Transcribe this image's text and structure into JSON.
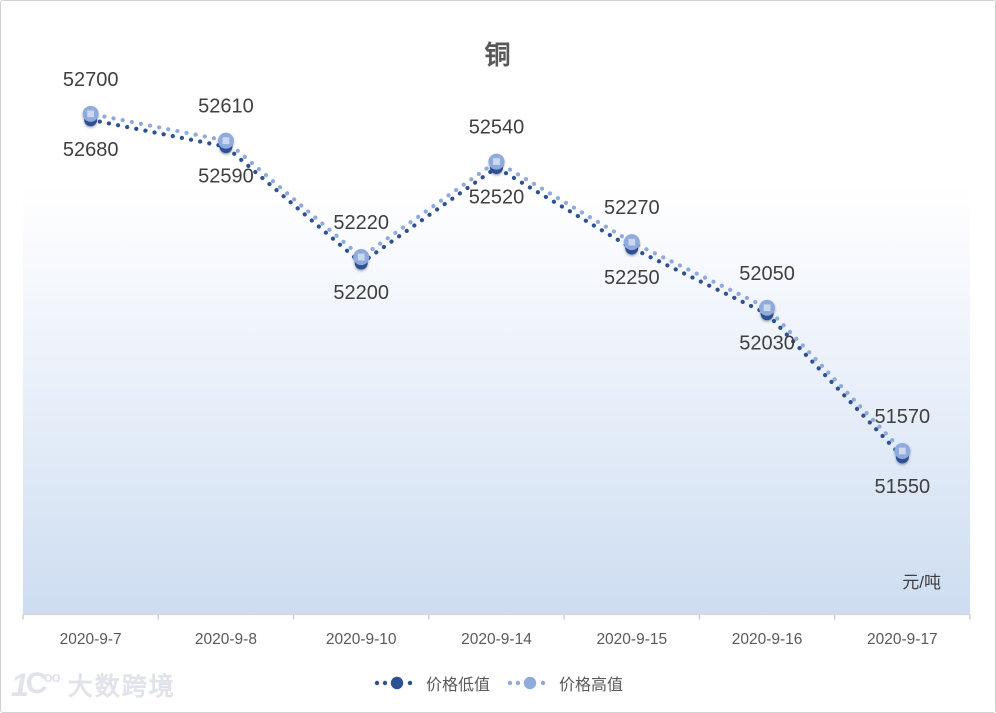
{
  "chart_data": {
    "type": "line",
    "title": "铜",
    "ylabel": "元/吨",
    "categories": [
      "2020-9-7",
      "2020-9-8",
      "2020-9-10",
      "2020-9-14",
      "2020-9-15",
      "2020-9-16",
      "2020-9-17"
    ],
    "series": [
      {
        "name": "价格低值",
        "color": "#2E5191",
        "marker": "circle",
        "label_position": "below",
        "values": [
          52680,
          52590,
          52200,
          52520,
          52250,
          52030,
          51550
        ]
      },
      {
        "name": "价格高值",
        "color": "#8FAADC",
        "marker": "circle-square",
        "marker_inner_color": "#CBD8F0",
        "label_position": "above",
        "values": [
          52700,
          52610,
          52220,
          52540,
          52270,
          52050,
          51570
        ]
      }
    ],
    "ylim": [
      51000,
      52800
    ],
    "grid": false,
    "line_style": "dotted",
    "legend_position": "bottom",
    "axis_color": "#d8d8d8",
    "tick_color": "#c8c8c8",
    "background_gradient": [
      "#FFFFFF",
      "#CDDEF1"
    ]
  },
  "branding": {
    "watermark_text": "大数跨境",
    "watermark_logo": "one-hundred-circles-logo"
  }
}
